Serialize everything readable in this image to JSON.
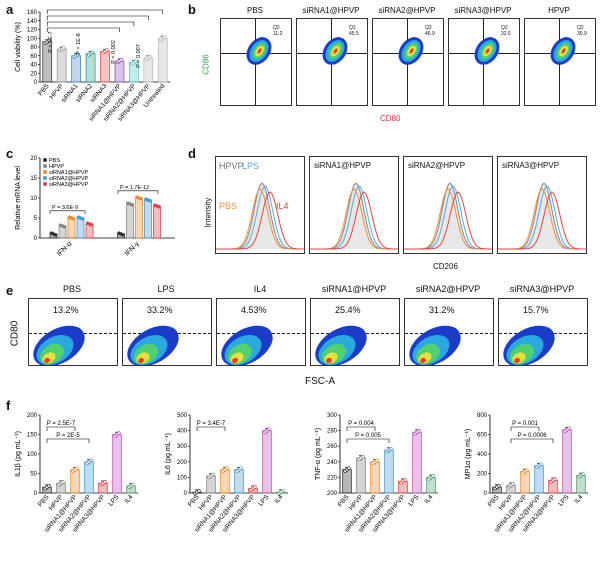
{
  "panels": {
    "a": {
      "letter": "a",
      "ylabel": "Cell viability (%)",
      "yticks": [
        "0",
        "20",
        "40",
        "60",
        "80",
        "100",
        "120",
        "140",
        "160"
      ],
      "pvalues": [
        "P = 5E-7",
        "P = 1E-8",
        "P = 0.002",
        "P = 0.007"
      ],
      "categories": [
        "PBS",
        "HPVP",
        "siRNA1",
        "siRNA2",
        "siRNA3",
        "siRNA1@HPVP",
        "siRNA2@HPVP",
        "siRNA3@HPVP",
        "Untreated"
      ]
    },
    "b": {
      "letter": "b",
      "titles": [
        "PBS",
        "siRNA1@HPVP",
        "siRNA2@HPVP",
        "siRNA3@HPVP",
        "HPVP"
      ],
      "q2": [
        "Q2\n11.2",
        "Q2\n45.5",
        "Q2\n46.9",
        "Q2\n32.6",
        "Q2\n30.9"
      ],
      "ylabel": "CD86",
      "xlabel": "CD80"
    },
    "c": {
      "letter": "c",
      "ylabel": "Relative mRNA level",
      "yticks": [
        "0",
        "5",
        "10",
        "15",
        "20"
      ],
      "legend": [
        "PBS",
        "HPVP",
        "siRNA1@HPVP",
        "siRNA2@HPVP",
        "siRNA3@HPVP"
      ],
      "groups": [
        "IFN-α",
        "IFN-γ"
      ],
      "pvalues": [
        "P = 3.6E-9",
        "P = 1.7E-12"
      ]
    },
    "d": {
      "letter": "d",
      "titles": [
        "",
        "siRNA1@HPVP",
        "siRNA2@HPVP",
        "siRNA3@HPVP"
      ],
      "labels_first": [
        "HPVP",
        "LPS",
        "PBS",
        "IL4"
      ],
      "ylabel": "Intensity",
      "xlabel": "CD206"
    },
    "e": {
      "letter": "e",
      "titles": [
        "PBS",
        "LPS",
        "IL4",
        "siRNA1@HPVP",
        "siRNA2@HPVP",
        "siRNA3@HPVP"
      ],
      "pcts": [
        "13.2%",
        "33.2%",
        "4.53%",
        "25.4%",
        "31.2%",
        "15.7%"
      ],
      "ylabel": "CD80",
      "xlabel": "FSC-A"
    },
    "f": {
      "letter": "f",
      "categories": [
        "PBS",
        "HPVP",
        "siRNA1@HPVP",
        "siRNA2@HPVP",
        "siRNA3@HPVP",
        "LPS",
        "IL4"
      ],
      "sub": [
        {
          "ylabel": "IL1β (pg mL⁻¹)",
          "yticks": [
            "0",
            "50",
            "100",
            "150",
            "200"
          ],
          "pvalues": [
            "P = 2.5E-7",
            "P = 2E-5"
          ]
        },
        {
          "ylabel": "IL6 (pg mL⁻¹)",
          "yticks": [
            "0",
            "100",
            "200",
            "300",
            "400",
            "500"
          ],
          "pvalues": [
            "P = 3.4E-7"
          ]
        },
        {
          "ylabel": "TNF-α (pg mL⁻¹)",
          "yticks": [
            "200",
            "220",
            "240",
            "260",
            "280",
            "300"
          ],
          "pvalues": [
            "P = 0.004",
            "P = 0.005"
          ]
        },
        {
          "ylabel": "MP1α (pg mL⁻¹)",
          "yticks": [
            "0",
            "200",
            "400",
            "600",
            "800"
          ],
          "pvalues": [
            "P = 0.001",
            "P = 0.0006"
          ]
        }
      ]
    }
  },
  "chart_data": [
    {
      "type": "bar",
      "panel": "a",
      "categories": [
        "PBS",
        "HPVP",
        "siRNA1",
        "siRNA2",
        "siRNA3",
        "siRNA1@HPVP",
        "siRNA2@HPVP",
        "siRNA3@HPVP",
        "Untreated"
      ],
      "values": [
        92,
        75,
        60,
        65,
        70,
        48,
        45,
        55,
        100
      ],
      "ylim": [
        0,
        160
      ],
      "ylabel": "Cell viability (%)",
      "colors": [
        "#444444",
        "#999999",
        "#4a8ac4",
        "#2e9e8a",
        "#e05555",
        "#8a5ab5",
        "#5ac4c8",
        "#bbbbbb",
        "#bbbbbb"
      ]
    },
    {
      "type": "bar",
      "panel": "c",
      "categories": [
        "IFN-α",
        "IFN-γ"
      ],
      "series": [
        {
          "name": "PBS",
          "values": [
            1,
            1
          ]
        },
        {
          "name": "HPVP",
          "values": [
            3,
            8.5
          ]
        },
        {
          "name": "siRNA1@HPVP",
          "values": [
            5,
            10
          ]
        },
        {
          "name": "siRNA2@HPVP",
          "values": [
            5,
            9.5
          ]
        },
        {
          "name": "siRNA3@HPVP",
          "values": [
            3.5,
            8
          ]
        }
      ],
      "ylim": [
        0,
        20
      ],
      "ylabel": "Relative mRNA level",
      "colors": [
        "#333333",
        "#888888",
        "#f08a2a",
        "#4a9ad4",
        "#e04444"
      ]
    },
    {
      "type": "bar",
      "panel": "f1",
      "categories": [
        "PBS",
        "HPVP",
        "siRNA1@HPVP",
        "siRNA2@HPVP",
        "siRNA3@HPVP",
        "LPS",
        "IL4"
      ],
      "values": [
        15,
        25,
        60,
        80,
        25,
        150,
        18
      ],
      "ylim": [
        0,
        200
      ],
      "ylabel": "IL1β (pg mL⁻¹)",
      "colors": [
        "#333333",
        "#888888",
        "#f08a2a",
        "#4a9ad4",
        "#e04444",
        "#c050c0",
        "#50a070"
      ]
    },
    {
      "type": "bar",
      "panel": "f2",
      "categories": [
        "PBS",
        "HPVP",
        "siRNA1@HPVP",
        "siRNA2@HPVP",
        "siRNA3@HPVP",
        "LPS",
        "IL4"
      ],
      "values": [
        5,
        110,
        150,
        150,
        30,
        400,
        5
      ],
      "ylim": [
        0,
        500
      ],
      "ylabel": "IL6 (pg mL⁻¹)",
      "colors": [
        "#333333",
        "#888888",
        "#f08a2a",
        "#4a9ad4",
        "#e04444",
        "#c050c0",
        "#50a070"
      ]
    },
    {
      "type": "bar",
      "panel": "f3",
      "categories": [
        "PBS",
        "HPVP",
        "siRNA1@HPVP",
        "siRNA2@HPVP",
        "siRNA3@HPVP",
        "LPS",
        "IL4"
      ],
      "values": [
        230,
        245,
        240,
        255,
        215,
        278,
        220
      ],
      "ylim": [
        200,
        300
      ],
      "ylabel": "TNF-α (pg mL⁻¹)",
      "colors": [
        "#333333",
        "#888888",
        "#f08a2a",
        "#4a9ad4",
        "#e04444",
        "#c050c0",
        "#50a070"
      ]
    },
    {
      "type": "bar",
      "panel": "f4",
      "categories": [
        "PBS",
        "HPVP",
        "siRNA1@HPVP",
        "siRNA2@HPVP",
        "siRNA3@HPVP",
        "LPS",
        "IL4"
      ],
      "values": [
        60,
        80,
        220,
        280,
        130,
        650,
        180
      ],
      "ylim": [
        0,
        800
      ],
      "ylabel": "MP1α (pg mL⁻¹)",
      "colors": [
        "#333333",
        "#888888",
        "#f08a2a",
        "#4a9ad4",
        "#e04444",
        "#c050c0",
        "#50a070"
      ]
    }
  ]
}
